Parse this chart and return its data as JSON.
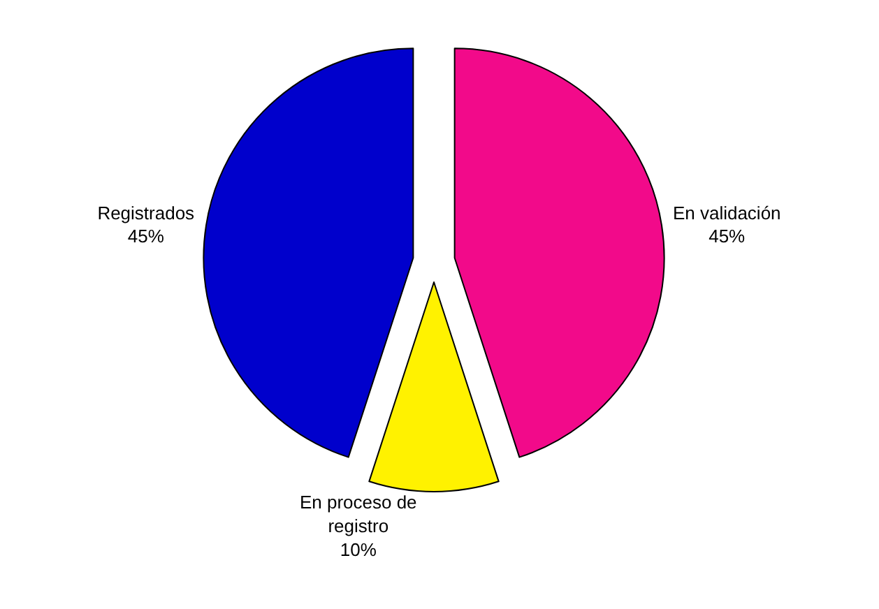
{
  "chart_data": {
    "type": "pie",
    "categories": [
      "En validación",
      "En proceso de registro",
      "Registrados"
    ],
    "values": [
      45,
      10,
      45
    ],
    "colors": [
      "#f20a8a",
      "#fff200",
      "#0000cc"
    ],
    "value_labels": [
      "45%",
      "10%",
      "45%"
    ],
    "legend": false
  }
}
